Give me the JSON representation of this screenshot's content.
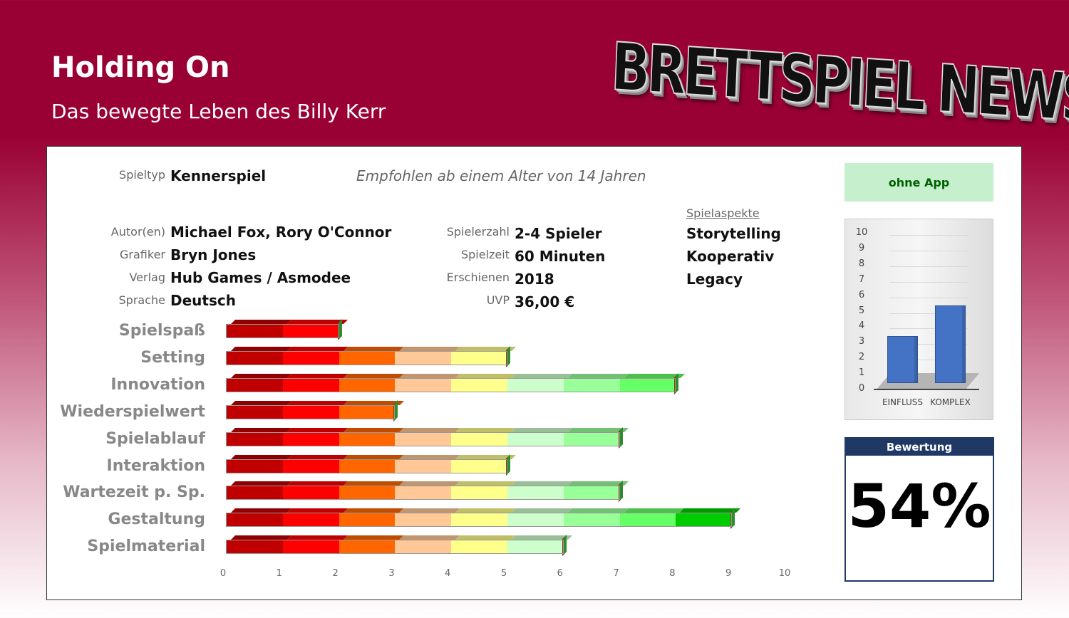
{
  "header": {
    "title": "Holding On",
    "subtitle": "Das bewegte Leben des Billy Kerr",
    "logo_text": "BRETTSPIEL NEWS"
  },
  "info": {
    "spieltyp": {
      "label": "Spieltyp",
      "value": "Kennerspiel"
    },
    "age": "Empfohlen ab einem Alter von 14 Jahren",
    "left": [
      {
        "label": "Autor(en)",
        "value": "Michael Fox, Rory O'Connor"
      },
      {
        "label": "Grafiker",
        "value": "Bryn Jones"
      },
      {
        "label": "Verlag",
        "value": "Hub Games / Asmodee"
      },
      {
        "label": "Sprache",
        "value": "Deutsch"
      }
    ],
    "middle": [
      {
        "label": "Spielerzahl",
        "value": "2-4 Spieler"
      },
      {
        "label": "Spielzeit",
        "value": "60 Minuten"
      },
      {
        "label": "Erschienen",
        "value": "2018"
      },
      {
        "label": "UVP",
        "value": "36,00 €"
      }
    ],
    "aspects": {
      "label": "Spielaspekte",
      "items": [
        "Storytelling",
        "Kooperativ",
        "Legacy"
      ]
    }
  },
  "app_badge": "ohne App",
  "rating": {
    "label": "Bewertung",
    "value": "54%"
  },
  "chart_data": [
    {
      "type": "bar",
      "orientation": "horizontal",
      "categories": [
        "Spielspaß",
        "Setting",
        "Innovation",
        "Wiederspielwert",
        "Spielablauf",
        "Interaktion",
        "Wartezeit p. Sp.",
        "Gestaltung",
        "Spielmaterial"
      ],
      "values": [
        2,
        5,
        8,
        3,
        7,
        5,
        7,
        9,
        6
      ],
      "xlim": [
        0,
        10
      ],
      "xticks": [
        "0",
        "1",
        "2",
        "3",
        "4",
        "5",
        "6",
        "7",
        "8",
        "9",
        "10"
      ],
      "segment_colors": [
        "#c00000",
        "#ff0000",
        "#ff6600",
        "#ffc896",
        "#ffff8c",
        "#ccffcc",
        "#99ff99",
        "#66ff66",
        "#00cc00",
        "#009900"
      ]
    },
    {
      "type": "bar",
      "categories": [
        "EINFLUSS",
        "KOMPLEX"
      ],
      "values": [
        3,
        5
      ],
      "ylim": [
        0,
        10
      ],
      "yticks": [
        "0",
        "1",
        "2",
        "3",
        "4",
        "5",
        "6",
        "7",
        "8",
        "9",
        "10"
      ],
      "color": "#4472c4"
    }
  ]
}
